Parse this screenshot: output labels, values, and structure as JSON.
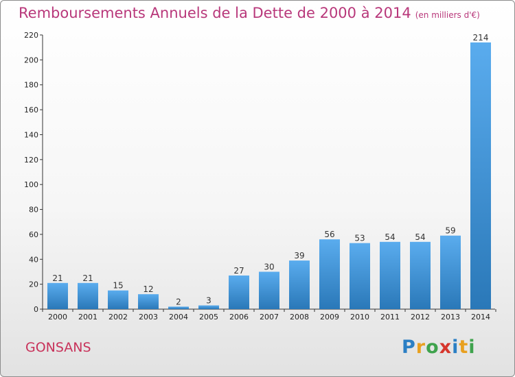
{
  "header": {
    "title": "Remboursements Annuels de la Dette de 2000 à 2014",
    "subtitle": "(en milliers d'€)"
  },
  "footer": {
    "commune": "GONSANS",
    "logo": {
      "p": "P",
      "r": "r",
      "o": "o",
      "x": "x",
      "i1": "i",
      "t": "t",
      "i2": "i"
    }
  },
  "colors": {
    "title": "#b8377a",
    "bar_top": "#5aacee",
    "bar_bottom": "#2a78b8",
    "axis": "#333333"
  },
  "chart_data": {
    "type": "bar",
    "title": "Remboursements Annuels de la Dette de 2000 à 2014",
    "subtitle": "(en milliers d'€)",
    "xlabel": "",
    "ylabel": "",
    "categories": [
      "2000",
      "2001",
      "2002",
      "2003",
      "2004",
      "2005",
      "2006",
      "2007",
      "2008",
      "2009",
      "2010",
      "2011",
      "2012",
      "2013",
      "2014"
    ],
    "values": [
      21,
      21,
      15,
      12,
      2,
      3,
      27,
      30,
      39,
      56,
      53,
      54,
      54,
      59,
      214
    ],
    "data_labels": [
      "21",
      "21",
      "15",
      "12",
      "2",
      "3",
      "27",
      "30",
      "39",
      "56",
      "53",
      "54",
      "54",
      "59",
      "214"
    ],
    "ylim": [
      0,
      220
    ],
    "yticks": [
      0,
      20,
      40,
      60,
      80,
      100,
      120,
      140,
      160,
      180,
      200,
      220
    ],
    "grid": false,
    "legend": "none"
  }
}
